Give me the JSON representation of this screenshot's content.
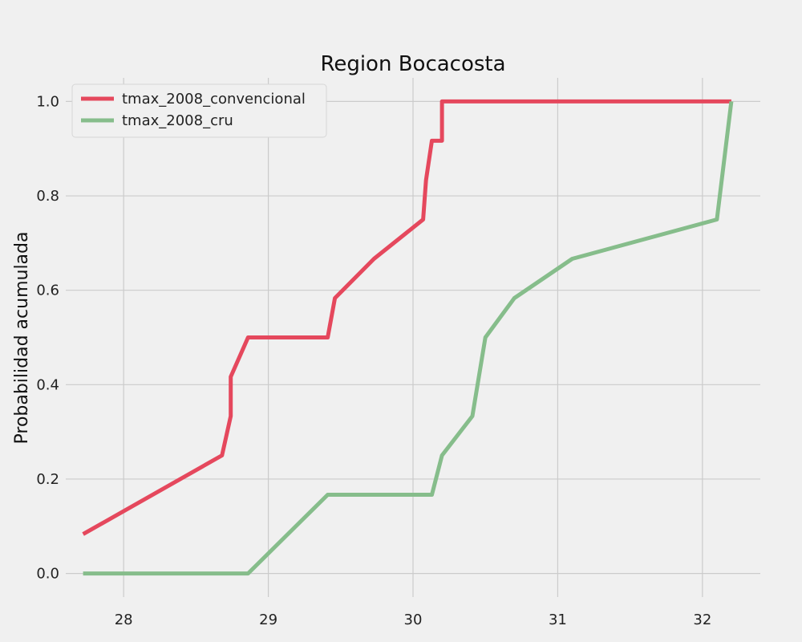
{
  "chart_data": {
    "type": "line",
    "title": "Region Bocacosta",
    "xlabel": "",
    "ylabel": "Probabilidad acumulada",
    "xlim": [
      27.6,
      32.4
    ],
    "ylim": [
      -0.05,
      1.05
    ],
    "xticks": [
      28,
      29,
      30,
      31,
      32
    ],
    "yticks": [
      0.0,
      0.2,
      0.4,
      0.6,
      0.8,
      1.0
    ],
    "grid": true,
    "legend_position": "top-left",
    "series": [
      {
        "name": "tmax_2008_convencional",
        "color": "#e5485d",
        "points": [
          [
            27.72,
            0.0833
          ],
          [
            28.68,
            0.25
          ],
          [
            28.74,
            0.3333
          ],
          [
            28.74,
            0.4167
          ],
          [
            28.86,
            0.5
          ],
          [
            29.41,
            0.5
          ],
          [
            29.46,
            0.5833
          ],
          [
            29.73,
            0.6667
          ],
          [
            30.07,
            0.75
          ],
          [
            30.09,
            0.8333
          ],
          [
            30.13,
            0.9167
          ],
          [
            30.2,
            0.9167
          ],
          [
            30.2,
            1.0
          ],
          [
            32.2,
            1.0
          ]
        ]
      },
      {
        "name": "tmax_2008_cru",
        "color": "#86bd8b",
        "points": [
          [
            27.72,
            0.0
          ],
          [
            28.86,
            0.0
          ],
          [
            29.41,
            0.1667
          ],
          [
            30.13,
            0.1667
          ],
          [
            30.2,
            0.25
          ],
          [
            30.41,
            0.3333
          ],
          [
            30.5,
            0.5
          ],
          [
            30.7,
            0.5833
          ],
          [
            31.1,
            0.6667
          ],
          [
            32.1,
            0.75
          ],
          [
            32.2,
            1.0
          ]
        ]
      }
    ]
  }
}
